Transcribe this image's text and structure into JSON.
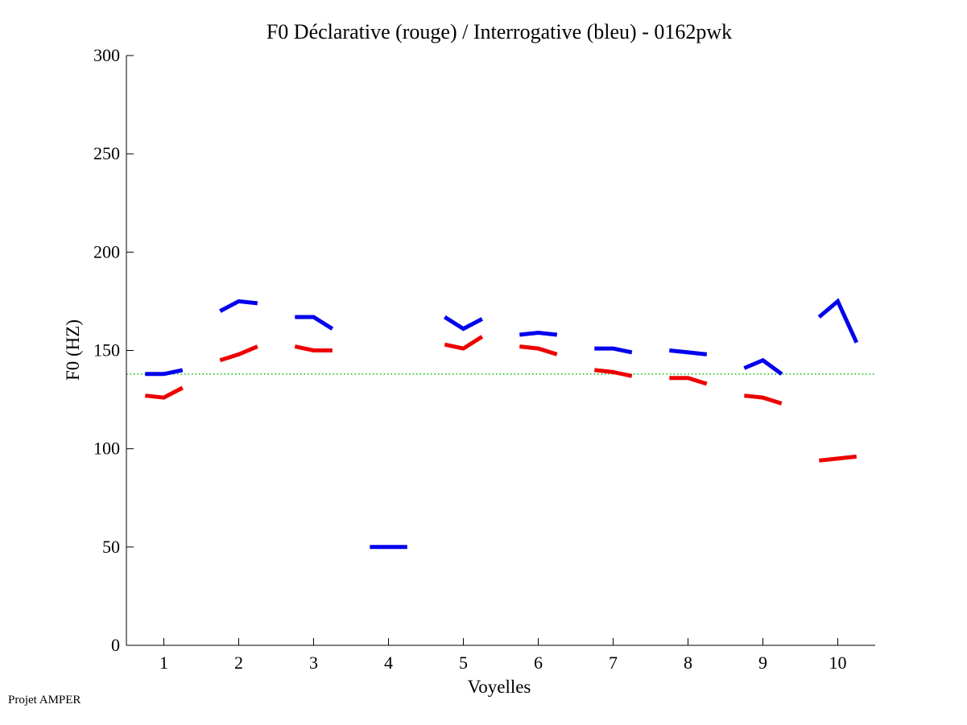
{
  "chart_data": {
    "type": "line",
    "title": "F0 Déclarative (rouge) / Interrogative (bleu) - 0162pwk",
    "xlabel": "Voyelles",
    "ylabel": "F0 (HZ)",
    "xlim": [
      0.5,
      10.5
    ],
    "ylim": [
      0,
      300
    ],
    "xticks": [
      1,
      2,
      3,
      4,
      5,
      6,
      7,
      8,
      9,
      10
    ],
    "xtick_labels": [
      "1",
      "2",
      "3",
      "4",
      "5",
      "6",
      "7",
      "8",
      "9",
      "10"
    ],
    "yticks": [
      0,
      50,
      100,
      150,
      200,
      250,
      300
    ],
    "ytick_labels": [
      "0",
      "50",
      "100",
      "150",
      "200",
      "250",
      "300"
    ],
    "reference_line": {
      "y": 138,
      "style": "dotted",
      "color": "#00bb00"
    },
    "series": [
      {
        "name": "Déclarative (rouge)",
        "color": "#ee0000",
        "segments": [
          {
            "x": [
              0.75,
              1.0,
              1.25
            ],
            "y": [
              127,
              126,
              131
            ]
          },
          {
            "x": [
              1.75,
              2.0,
              2.25
            ],
            "y": [
              145,
              148,
              152
            ]
          },
          {
            "x": [
              2.75,
              3.0,
              3.25
            ],
            "y": [
              152,
              150,
              150
            ]
          },
          {
            "x": [
              4.75,
              5.0,
              5.25
            ],
            "y": [
              153,
              151,
              157
            ]
          },
          {
            "x": [
              5.75,
              6.0,
              6.25
            ],
            "y": [
              152,
              151,
              148
            ]
          },
          {
            "x": [
              6.75,
              7.0,
              7.25
            ],
            "y": [
              140,
              139,
              137
            ]
          },
          {
            "x": [
              7.75,
              8.0,
              8.25
            ],
            "y": [
              136,
              136,
              133
            ]
          },
          {
            "x": [
              8.75,
              9.0,
              9.25
            ],
            "y": [
              127,
              126,
              123
            ]
          },
          {
            "x": [
              9.75,
              10.0,
              10.25
            ],
            "y": [
              94,
              95,
              96
            ]
          }
        ]
      },
      {
        "name": "Interrogative (bleu)",
        "color": "#0000ee",
        "segments": [
          {
            "x": [
              0.75,
              1.0,
              1.25
            ],
            "y": [
              138,
              138,
              140
            ]
          },
          {
            "x": [
              1.75,
              2.0,
              2.25
            ],
            "y": [
              170,
              175,
              174
            ]
          },
          {
            "x": [
              2.75,
              3.0,
              3.25
            ],
            "y": [
              167,
              167,
              161
            ]
          },
          {
            "x": [
              3.75,
              4.0,
              4.25
            ],
            "y": [
              50,
              50,
              50
            ]
          },
          {
            "x": [
              4.75,
              5.0,
              5.25
            ],
            "y": [
              167,
              161,
              166
            ]
          },
          {
            "x": [
              5.75,
              6.0,
              6.25
            ],
            "y": [
              158,
              159,
              158
            ]
          },
          {
            "x": [
              6.75,
              7.0,
              7.25
            ],
            "y": [
              151,
              151,
              149
            ]
          },
          {
            "x": [
              7.75,
              8.0,
              8.25
            ],
            "y": [
              150,
              149,
              148
            ]
          },
          {
            "x": [
              8.75,
              9.0,
              9.25
            ],
            "y": [
              141,
              145,
              138
            ]
          },
          {
            "x": [
              9.75,
              10.0,
              10.25
            ],
            "y": [
              167,
              175,
              154
            ]
          }
        ]
      }
    ]
  },
  "footer": {
    "text": "Projet AMPER"
  }
}
